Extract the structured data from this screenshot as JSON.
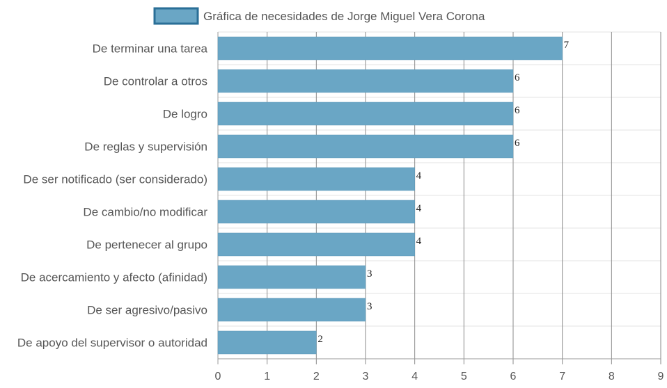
{
  "chart_data": {
    "type": "bar",
    "orientation": "horizontal",
    "legend_label": "Gráfica de necesidades de Jorge Miguel Vera Corona",
    "legend_position": "top",
    "bar_color": "#6aa6c5",
    "legend_border_color": "#2a6f97",
    "grid": true,
    "categories": [
      "De terminar una tarea",
      "De controlar a otros",
      "De logro",
      "De reglas y supervisión",
      "De ser notificado (ser considerado)",
      "De cambio/no modificar",
      "De pertenecer al grupo",
      "De acercamiento y afecto (afinidad)",
      "De ser agresivo/pasivo",
      "De apoyo del supervisor o autoridad"
    ],
    "values": [
      7,
      6,
      6,
      6,
      4,
      4,
      4,
      3,
      3,
      2
    ],
    "xlim": [
      0,
      9
    ],
    "xticks": [
      "0",
      "1",
      "2",
      "3",
      "4",
      "5",
      "6",
      "7",
      "8",
      "9"
    ]
  }
}
